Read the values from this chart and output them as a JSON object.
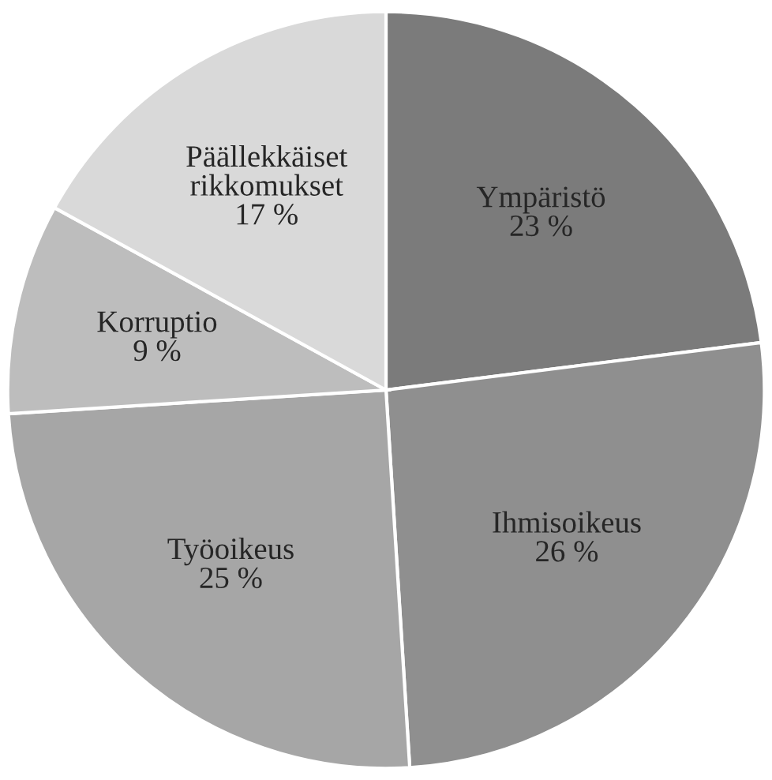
{
  "chart_data": {
    "type": "pie",
    "categories": [
      "Ympäristö",
      "Ihmisoikeus",
      "Työoikeus",
      "Korruptio",
      "Päällekkäiset rikkomukset"
    ],
    "values": [
      23,
      26,
      25,
      9,
      17
    ],
    "value_labels": [
      "23 %",
      "26 %",
      "25 %",
      "9 %",
      "17 %"
    ],
    "colors": [
      "#7b7b7b",
      "#8f8f8f",
      "#a6a6a6",
      "#bdbdbd",
      "#d9d9d9"
    ],
    "legend": false
  }
}
